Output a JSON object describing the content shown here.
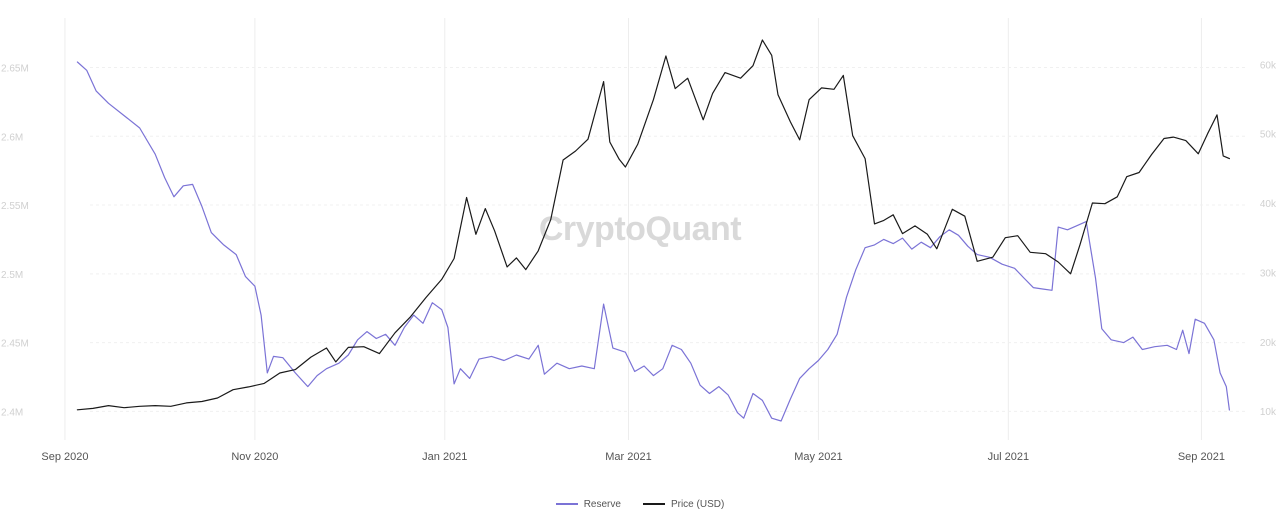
{
  "chart_data": {
    "type": "line",
    "watermark": "CryptoQuant",
    "x_tick_labels": [
      "Sep 2020",
      "Nov 2020",
      "Jan 2021",
      "Mar 2021",
      "May 2021",
      "Jul 2021",
      "Sep 2021"
    ],
    "x_tick_dates": [
      "2020-09-01",
      "2020-11-01",
      "2021-01-01",
      "2021-03-01",
      "2021-05-01",
      "2021-07-01",
      "2021-09-01"
    ],
    "x_range": [
      "2020-08-15",
      "2021-09-15"
    ],
    "left_axis": {
      "ticks": [
        "2.4M",
        "2.45M",
        "2.5M",
        "2.55M",
        "2.6M",
        "2.65M"
      ],
      "tick_values": [
        2400000,
        2450000,
        2500000,
        2550000,
        2600000,
        2650000
      ],
      "range": [
        2385000,
        2670000
      ]
    },
    "right_axis": {
      "ticks": [
        "10k",
        "20k",
        "30k",
        "40k",
        "50k",
        "60k"
      ],
      "tick_values": [
        10000,
        20000,
        30000,
        40000,
        50000,
        60000
      ],
      "range": [
        7000,
        63500
      ]
    },
    "grid": {
      "vertical": true,
      "horizontal": true
    },
    "legend_position": "bottom-center",
    "series": [
      {
        "name": "Reserve",
        "axis": "left",
        "color": "#7b73d6",
        "points": [
          [
            "2020-09-05",
            2654000
          ],
          [
            "2020-09-08",
            2648000
          ],
          [
            "2020-09-11",
            2633000
          ],
          [
            "2020-09-15",
            2624000
          ],
          [
            "2020-09-20",
            2615000
          ],
          [
            "2020-09-25",
            2606000
          ],
          [
            "2020-09-30",
            2587000
          ],
          [
            "2020-10-03",
            2570000
          ],
          [
            "2020-10-06",
            2556000
          ],
          [
            "2020-10-09",
            2564000
          ],
          [
            "2020-10-12",
            2565000
          ],
          [
            "2020-10-15",
            2549000
          ],
          [
            "2020-10-18",
            2530000
          ],
          [
            "2020-10-22",
            2521000
          ],
          [
            "2020-10-26",
            2514000
          ],
          [
            "2020-10-29",
            2498000
          ],
          [
            "2020-11-01",
            2491000
          ],
          [
            "2020-11-03",
            2470000
          ],
          [
            "2020-11-05",
            2428000
          ],
          [
            "2020-11-07",
            2440000
          ],
          [
            "2020-11-10",
            2439000
          ],
          [
            "2020-11-14",
            2428000
          ],
          [
            "2020-11-18",
            2418000
          ],
          [
            "2020-11-21",
            2426000
          ],
          [
            "2020-11-24",
            2431000
          ],
          [
            "2020-11-28",
            2435000
          ],
          [
            "2020-12-01",
            2441000
          ],
          [
            "2020-12-04",
            2452000
          ],
          [
            "2020-12-07",
            2458000
          ],
          [
            "2020-12-10",
            2453000
          ],
          [
            "2020-12-13",
            2456000
          ],
          [
            "2020-12-16",
            2448000
          ],
          [
            "2020-12-19",
            2461000
          ],
          [
            "2020-12-22",
            2470000
          ],
          [
            "2020-12-25",
            2464000
          ],
          [
            "2020-12-28",
            2479000
          ],
          [
            "2020-12-31",
            2474000
          ],
          [
            "2021-01-02",
            2461000
          ],
          [
            "2021-01-04",
            2420000
          ],
          [
            "2021-01-06",
            2431000
          ],
          [
            "2021-01-09",
            2424000
          ],
          [
            "2021-01-12",
            2438000
          ],
          [
            "2021-01-16",
            2440000
          ],
          [
            "2021-01-20",
            2437000
          ],
          [
            "2021-01-24",
            2441000
          ],
          [
            "2021-01-28",
            2438000
          ],
          [
            "2021-01-31",
            2448000
          ],
          [
            "2021-02-02",
            2427000
          ],
          [
            "2021-02-06",
            2435000
          ],
          [
            "2021-02-10",
            2431000
          ],
          [
            "2021-02-14",
            2433000
          ],
          [
            "2021-02-18",
            2431000
          ],
          [
            "2021-02-21",
            2478000
          ],
          [
            "2021-02-24",
            2446000
          ],
          [
            "2021-02-28",
            2443000
          ],
          [
            "2021-03-03",
            2429000
          ],
          [
            "2021-03-06",
            2433000
          ],
          [
            "2021-03-09",
            2426000
          ],
          [
            "2021-03-12",
            2431000
          ],
          [
            "2021-03-15",
            2448000
          ],
          [
            "2021-03-18",
            2445000
          ],
          [
            "2021-03-21",
            2435000
          ],
          [
            "2021-03-24",
            2419000
          ],
          [
            "2021-03-27",
            2413000
          ],
          [
            "2021-03-30",
            2418000
          ],
          [
            "2021-04-02",
            2412000
          ],
          [
            "2021-04-05",
            2399000
          ],
          [
            "2021-04-07",
            2395000
          ],
          [
            "2021-04-10",
            2413000
          ],
          [
            "2021-04-13",
            2408000
          ],
          [
            "2021-04-16",
            2395000
          ],
          [
            "2021-04-19",
            2393000
          ],
          [
            "2021-04-22",
            2409000
          ],
          [
            "2021-04-25",
            2424000
          ],
          [
            "2021-04-28",
            2431000
          ],
          [
            "2021-05-01",
            2437000
          ],
          [
            "2021-05-04",
            2445000
          ],
          [
            "2021-05-07",
            2456000
          ],
          [
            "2021-05-10",
            2483000
          ],
          [
            "2021-05-13",
            2503000
          ],
          [
            "2021-05-16",
            2519000
          ],
          [
            "2021-05-19",
            2521000
          ],
          [
            "2021-05-22",
            2525000
          ],
          [
            "2021-05-25",
            2522000
          ],
          [
            "2021-05-28",
            2526000
          ],
          [
            "2021-05-31",
            2518000
          ],
          [
            "2021-06-03",
            2523000
          ],
          [
            "2021-06-06",
            2519000
          ],
          [
            "2021-06-09",
            2527000
          ],
          [
            "2021-06-12",
            2532000
          ],
          [
            "2021-06-15",
            2528000
          ],
          [
            "2021-06-18",
            2520000
          ],
          [
            "2021-06-21",
            2514000
          ],
          [
            "2021-06-25",
            2512000
          ],
          [
            "2021-06-29",
            2507000
          ],
          [
            "2021-07-03",
            2504000
          ],
          [
            "2021-07-06",
            2497000
          ],
          [
            "2021-07-09",
            2490000
          ],
          [
            "2021-07-12",
            2489000
          ],
          [
            "2021-07-15",
            2488000
          ],
          [
            "2021-07-17",
            2534000
          ],
          [
            "2021-07-20",
            2532000
          ],
          [
            "2021-07-23",
            2535000
          ],
          [
            "2021-07-26",
            2538000
          ],
          [
            "2021-07-29",
            2497000
          ],
          [
            "2021-07-31",
            2460000
          ],
          [
            "2021-08-03",
            2452000
          ],
          [
            "2021-08-07",
            2450000
          ],
          [
            "2021-08-10",
            2454000
          ],
          [
            "2021-08-13",
            2445000
          ],
          [
            "2021-08-17",
            2447000
          ],
          [
            "2021-08-21",
            2448000
          ],
          [
            "2021-08-24",
            2445000
          ],
          [
            "2021-08-26",
            2459000
          ],
          [
            "2021-08-28",
            2442000
          ],
          [
            "2021-08-30",
            2467000
          ],
          [
            "2021-09-02",
            2464000
          ],
          [
            "2021-09-05",
            2452000
          ],
          [
            "2021-09-07",
            2428000
          ],
          [
            "2021-09-09",
            2418000
          ],
          [
            "2021-09-10",
            2401000
          ]
        ]
      },
      {
        "name": "Price (USD)",
        "axis": "right",
        "color": "#1a1a1a",
        "points": [
          [
            "2020-09-05",
            10200
          ],
          [
            "2020-09-10",
            10400
          ],
          [
            "2020-09-15",
            10800
          ],
          [
            "2020-09-20",
            10500
          ],
          [
            "2020-09-25",
            10700
          ],
          [
            "2020-09-30",
            10800
          ],
          [
            "2020-10-05",
            10700
          ],
          [
            "2020-10-10",
            11200
          ],
          [
            "2020-10-15",
            11400
          ],
          [
            "2020-10-20",
            11900
          ],
          [
            "2020-10-25",
            13100
          ],
          [
            "2020-10-30",
            13500
          ],
          [
            "2020-11-04",
            14000
          ],
          [
            "2020-11-09",
            15500
          ],
          [
            "2020-11-14",
            16000
          ],
          [
            "2020-11-19",
            17800
          ],
          [
            "2020-11-24",
            19100
          ],
          [
            "2020-11-27",
            17100
          ],
          [
            "2020-12-01",
            19200
          ],
          [
            "2020-12-06",
            19300
          ],
          [
            "2020-12-11",
            18300
          ],
          [
            "2020-12-16",
            21300
          ],
          [
            "2020-12-21",
            23600
          ],
          [
            "2020-12-26",
            26400
          ],
          [
            "2020-12-31",
            29000
          ],
          [
            "2021-01-04",
            32000
          ],
          [
            "2021-01-08",
            40800
          ],
          [
            "2021-01-11",
            35500
          ],
          [
            "2021-01-14",
            39200
          ],
          [
            "2021-01-17",
            36000
          ],
          [
            "2021-01-21",
            30800
          ],
          [
            "2021-01-24",
            32100
          ],
          [
            "2021-01-27",
            30400
          ],
          [
            "2021-01-31",
            33100
          ],
          [
            "2021-02-04",
            37600
          ],
          [
            "2021-02-08",
            46200
          ],
          [
            "2021-02-12",
            47500
          ],
          [
            "2021-02-16",
            49200
          ],
          [
            "2021-02-21",
            57500
          ],
          [
            "2021-02-23",
            48800
          ],
          [
            "2021-02-26",
            46300
          ],
          [
            "2021-02-28",
            45200
          ],
          [
            "2021-03-04",
            48500
          ],
          [
            "2021-03-09",
            54900
          ],
          [
            "2021-03-13",
            61200
          ],
          [
            "2021-03-16",
            56500
          ],
          [
            "2021-03-20",
            58000
          ],
          [
            "2021-03-25",
            52000
          ],
          [
            "2021-03-28",
            55800
          ],
          [
            "2021-04-01",
            58800
          ],
          [
            "2021-04-06",
            58000
          ],
          [
            "2021-04-10",
            59800
          ],
          [
            "2021-04-13",
            63500
          ],
          [
            "2021-04-16",
            61300
          ],
          [
            "2021-04-18",
            55600
          ],
          [
            "2021-04-22",
            51700
          ],
          [
            "2021-04-25",
            49100
          ],
          [
            "2021-04-28",
            54900
          ],
          [
            "2021-05-02",
            56600
          ],
          [
            "2021-05-06",
            56400
          ],
          [
            "2021-05-09",
            58400
          ],
          [
            "2021-05-12",
            49700
          ],
          [
            "2021-05-16",
            46400
          ],
          [
            "2021-05-19",
            37000
          ],
          [
            "2021-05-22",
            37500
          ],
          [
            "2021-05-25",
            38300
          ],
          [
            "2021-05-28",
            35600
          ],
          [
            "2021-06-01",
            36700
          ],
          [
            "2021-06-05",
            35500
          ],
          [
            "2021-06-08",
            33400
          ],
          [
            "2021-06-13",
            39100
          ],
          [
            "2021-06-17",
            38100
          ],
          [
            "2021-06-21",
            31600
          ],
          [
            "2021-06-26",
            32200
          ],
          [
            "2021-06-30",
            35000
          ],
          [
            "2021-07-04",
            35300
          ],
          [
            "2021-07-08",
            32900
          ],
          [
            "2021-07-13",
            32700
          ],
          [
            "2021-07-17",
            31500
          ],
          [
            "2021-07-21",
            29800
          ],
          [
            "2021-07-24",
            34000
          ],
          [
            "2021-07-28",
            40000
          ],
          [
            "2021-08-01",
            39900
          ],
          [
            "2021-08-05",
            40900
          ],
          [
            "2021-08-08",
            43800
          ],
          [
            "2021-08-12",
            44400
          ],
          [
            "2021-08-16",
            47000
          ],
          [
            "2021-08-20",
            49300
          ],
          [
            "2021-08-23",
            49500
          ],
          [
            "2021-08-27",
            49000
          ],
          [
            "2021-08-31",
            47100
          ],
          [
            "2021-09-03",
            50000
          ],
          [
            "2021-09-06",
            52700
          ],
          [
            "2021-09-08",
            46800
          ],
          [
            "2021-09-10",
            46400
          ]
        ]
      }
    ]
  }
}
